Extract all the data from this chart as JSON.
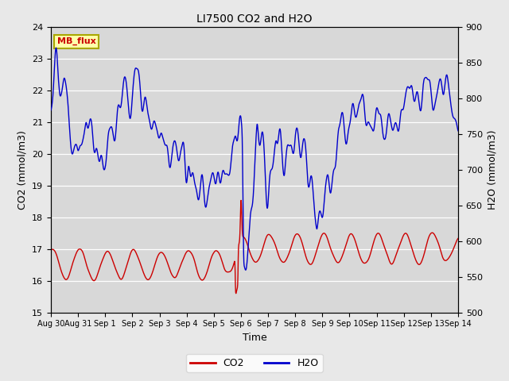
{
  "title": "LI7500 CO2 and H2O",
  "xlabel": "Time",
  "ylabel_left": "CO2 (mmol/m3)",
  "ylabel_right": "H2O (mmol/m3)",
  "ylim_left": [
    15.0,
    24.0
  ],
  "ylim_right": [
    500,
    900
  ],
  "x_tick_labels": [
    "Aug 30",
    "Aug 31",
    "Sep 1",
    "Sep 2",
    "Sep 3",
    "Sep 4",
    "Sep 5",
    "Sep 6",
    "Sep 7",
    "Sep 8",
    "Sep 9",
    "Sep 10",
    "Sep 11",
    "Sep 12",
    "Sep 13",
    "Sep 14"
  ],
  "co2_color": "#cc0000",
  "h2o_color": "#0000cc",
  "bg_color": "#d8d8d8",
  "annotation_text": "MB_flux",
  "annotation_bg": "#ffffaa",
  "annotation_border": "#aaa800",
  "legend_co2": "CO2",
  "legend_h2o": "H2O",
  "linewidth": 1.0,
  "grid_color": "white",
  "fig_bg": "#e8e8e8"
}
